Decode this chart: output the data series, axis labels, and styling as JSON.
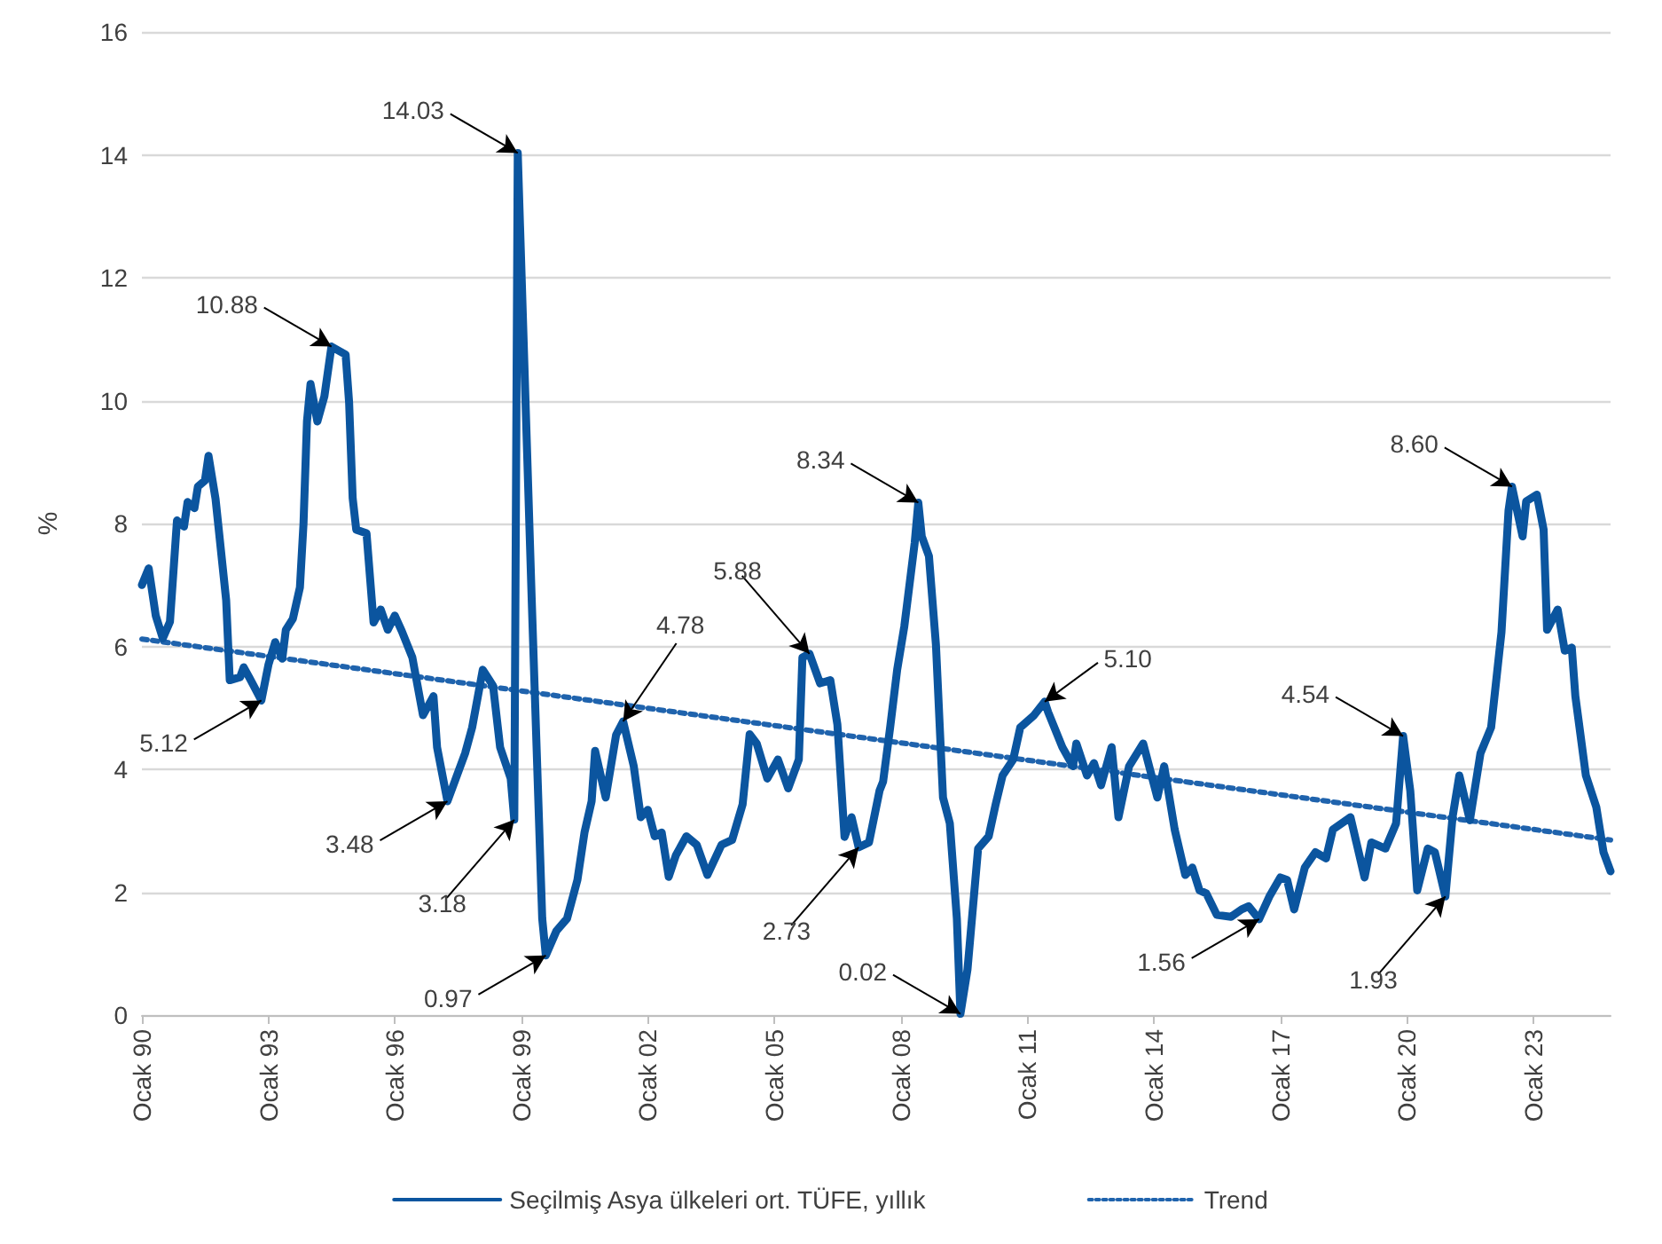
{
  "chart_data": {
    "type": "line",
    "ylabel": "%",
    "xlim": [
      "1990-01",
      "2024-11"
    ],
    "ylim": [
      0,
      16
    ],
    "xticks": [
      {
        "value": "1990-01",
        "label": "Ocak 90"
      },
      {
        "value": "1993-01",
        "label": "Ocak 93"
      },
      {
        "value": "1996-01",
        "label": "Ocak 96"
      },
      {
        "value": "1999-01",
        "label": "Ocak 99"
      },
      {
        "value": "2002-01",
        "label": "Ocak 02"
      },
      {
        "value": "2005-01",
        "label": "Ocak 05"
      },
      {
        "value": "2008-01",
        "label": "Ocak 08"
      },
      {
        "value": "2011-01",
        "label": "Ocak 11"
      },
      {
        "value": "2014-01",
        "label": "Ocak 14"
      },
      {
        "value": "2017-01",
        "label": "Ocak 17"
      },
      {
        "value": "2020-01",
        "label": "Ocak 20"
      },
      {
        "value": "2023-01",
        "label": "Ocak 23"
      }
    ],
    "yticks": [
      0,
      2,
      4,
      6,
      8,
      10,
      12,
      14,
      16
    ],
    "grid": "y",
    "legend": "bottom",
    "marker": "none",
    "x": [
      "1990-01",
      "1990-03",
      "1990-05",
      "1990-07",
      "1990-09",
      "1990-11",
      "1991-01",
      "1991-02",
      "1991-04",
      "1991-05",
      "1991-07",
      "1991-08",
      "1991-10",
      "1992-01",
      "1992-02",
      "1992-05",
      "1992-06",
      "1992-08",
      "1992-11",
      "1993-01",
      "1993-03",
      "1993-05",
      "1993-06",
      "1993-08",
      "1993-10",
      "1993-11",
      "1993-12",
      "1994-01",
      "1994-03",
      "1994-05",
      "1994-07",
      "1994-11",
      "1994-12",
      "1995-01",
      "1995-02",
      "1995-05",
      "1995-07",
      "1995-09",
      "1995-11",
      "1996-01",
      "1996-03",
      "1996-06",
      "1996-09",
      "1996-12",
      "1997-01",
      "1997-04",
      "1997-09",
      "1997-11",
      "1998-02",
      "1998-05",
      "1998-07",
      "1998-10",
      "1998-11",
      "1998-12",
      "1999-04",
      "1999-07",
      "1999-08",
      "1999-11",
      "2000-02",
      "2000-05",
      "2000-07",
      "2000-09",
      "2000-10",
      "2001-01",
      "2001-04",
      "2001-06",
      "2001-09",
      "2001-11",
      "2002-01",
      "2002-03",
      "2002-05",
      "2002-07",
      "2002-09",
      "2002-12",
      "2003-03",
      "2003-06",
      "2003-10",
      "2004-01",
      "2004-04",
      "2004-06",
      "2004-08",
      "2004-11",
      "2005-02",
      "2005-05",
      "2005-08",
      "2005-09",
      "2005-11",
      "2006-02",
      "2006-05",
      "2006-07",
      "2006-09",
      "2006-11",
      "2007-01",
      "2007-04",
      "2007-07",
      "2007-08",
      "2007-10",
      "2007-12",
      "2008-02",
      "2008-05",
      "2008-06",
      "2008-07",
      "2008-09",
      "2008-11",
      "2009-01",
      "2009-03",
      "2009-05",
      "2009-06",
      "2009-08",
      "2009-11",
      "2010-02",
      "2010-04",
      "2010-06",
      "2010-09",
      "2010-11",
      "2011-03",
      "2011-06",
      "2011-07",
      "2011-11",
      "2012-02",
      "2012-03",
      "2012-06",
      "2012-08",
      "2012-10",
      "2013-01",
      "2013-03",
      "2013-06",
      "2013-10",
      "2014-02",
      "2014-04",
      "2014-07",
      "2014-10",
      "2014-12",
      "2015-02",
      "2015-04",
      "2015-07",
      "2015-11",
      "2016-02",
      "2016-04",
      "2016-07",
      "2016-10",
      "2017-01",
      "2017-03",
      "2017-05",
      "2017-08",
      "2017-11",
      "2018-02",
      "2018-04",
      "2018-09",
      "2019-01",
      "2019-03",
      "2019-07",
      "2019-10",
      "2019-12",
      "2020-02",
      "2020-04",
      "2020-07",
      "2020-09",
      "2020-12",
      "2021-02",
      "2021-04",
      "2021-07",
      "2021-10",
      "2022-01",
      "2022-04",
      "2022-06",
      "2022-07",
      "2022-10",
      "2022-11",
      "2023-02",
      "2023-04",
      "2023-05",
      "2023-08",
      "2023-10",
      "2023-12",
      "2024-01",
      "2024-04",
      "2024-07",
      "2024-09",
      "2024-11"
    ],
    "series": [
      {
        "name": "Seçilmiş Asya ülkeleri ort. TÜFE, yıllık",
        "color": "#0b559f",
        "line_style": "solid",
        "values": [
          7.0,
          7.27,
          6.5,
          6.13,
          6.4,
          8.05,
          7.95,
          8.35,
          8.25,
          8.6,
          8.7,
          9.1,
          8.4,
          6.75,
          5.45,
          5.5,
          5.66,
          5.45,
          5.12,
          5.7,
          6.07,
          5.8,
          6.27,
          6.45,
          6.96,
          8.0,
          9.66,
          10.27,
          9.66,
          10.07,
          10.88,
          10.75,
          9.97,
          8.41,
          7.9,
          7.84,
          6.39,
          6.6,
          6.27,
          6.5,
          6.25,
          5.82,
          4.88,
          5.19,
          4.36,
          3.48,
          4.26,
          4.68,
          5.62,
          5.36,
          4.36,
          3.85,
          3.18,
          14.03,
          6.76,
          1.57,
          0.97,
          1.37,
          1.57,
          2.2,
          2.97,
          3.48,
          4.3,
          3.54,
          4.56,
          4.78,
          4.05,
          3.22,
          3.34,
          2.91,
          2.97,
          2.25,
          2.6,
          2.91,
          2.77,
          2.28,
          2.77,
          2.85,
          3.43,
          4.57,
          4.42,
          3.85,
          4.16,
          3.69,
          4.16,
          5.82,
          5.88,
          5.4,
          5.45,
          4.73,
          2.9,
          3.22,
          2.73,
          2.81,
          3.65,
          3.8,
          4.68,
          5.62,
          6.33,
          7.69,
          8.34,
          7.79,
          7.47,
          6.02,
          3.54,
          3.12,
          1.57,
          0.02,
          0.74,
          2.71,
          2.91,
          3.42,
          3.9,
          4.16,
          4.68,
          4.88,
          5.1,
          4.93,
          4.36,
          4.05,
          4.42,
          3.9,
          4.1,
          3.74,
          4.36,
          3.22,
          4.05,
          4.42,
          3.54,
          4.05,
          3.02,
          2.28,
          2.4,
          2.03,
          1.98,
          1.63,
          1.6,
          1.72,
          1.77,
          1.56,
          1.94,
          2.24,
          2.2,
          1.72,
          2.4,
          2.65,
          2.55,
          3.02,
          3.22,
          2.24,
          2.81,
          2.71,
          3.12,
          4.54,
          3.65,
          2.03,
          2.71,
          2.65,
          1.93,
          3.22,
          3.9,
          3.17,
          4.26,
          4.68,
          6.23,
          8.21,
          8.6,
          7.79,
          8.36,
          8.47,
          7.9,
          6.27,
          6.6,
          5.93,
          5.98,
          5.19,
          3.9,
          3.38,
          2.65,
          2.34
        ]
      },
      {
        "name": "Trend",
        "type": "line",
        "color": "#1f63ad",
        "line_style": "dotted",
        "x": [
          "1990-01",
          "2024-11"
        ],
        "values": [
          6.12,
          2.85
        ]
      }
    ],
    "annotations": [
      {
        "text": "5.12",
        "x": "1992-11",
        "y": 5.12
      },
      {
        "text": "10.88",
        "x": "1994-07",
        "y": 10.88
      },
      {
        "text": "3.48",
        "x": "1997-04",
        "y": 3.48
      },
      {
        "text": "3.18",
        "x": "1998-11",
        "y": 3.18
      },
      {
        "text": "14.03",
        "x": "1998-12",
        "y": 14.03
      },
      {
        "text": "0.97",
        "x": "1999-08",
        "y": 0.97
      },
      {
        "text": "4.78",
        "x": "2001-06",
        "y": 4.78
      },
      {
        "text": "5.88",
        "x": "2005-11",
        "y": 5.88
      },
      {
        "text": "2.73",
        "x": "2007-01",
        "y": 2.73
      },
      {
        "text": "8.34",
        "x": "2008-06",
        "y": 8.34
      },
      {
        "text": "0.02",
        "x": "2009-06",
        "y": 0.02
      },
      {
        "text": "5.10",
        "x": "2011-06",
        "y": 5.1
      },
      {
        "text": "1.56",
        "x": "2016-07",
        "y": 1.56
      },
      {
        "text": "4.54",
        "x": "2019-12",
        "y": 4.54
      },
      {
        "text": "1.93",
        "x": "2020-12",
        "y": 1.93
      },
      {
        "text": "8.60",
        "x": "2022-07",
        "y": 8.6
      }
    ]
  }
}
